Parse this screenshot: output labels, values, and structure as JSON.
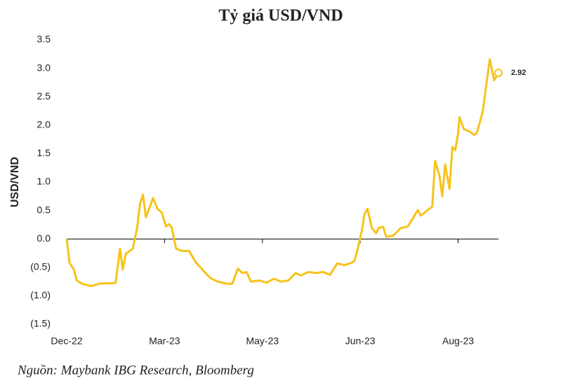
{
  "chart_data": {
    "type": "line",
    "title": "Tỷ giá USD/VND",
    "y_label": "USD/VND",
    "source": "Nguồn: Maybank IBG Research, Bloomberg",
    "xlim": [
      0,
      300
    ],
    "xticks": [
      {
        "value": 0,
        "label": "Dec-22"
      },
      {
        "value": 68,
        "label": "Mar-23"
      },
      {
        "value": 136,
        "label": "May-23"
      },
      {
        "value": 204,
        "label": "Jun-23"
      },
      {
        "value": 272,
        "label": "Aug-23"
      }
    ],
    "ylim": [
      -1.5,
      3.5
    ],
    "yticks": [
      3.5,
      {
        "value": 3,
        "label": "3.0"
      },
      2.5,
      {
        "value": 2,
        "label": "2.0"
      },
      1.5,
      {
        "value": 1,
        "label": "1.0"
      },
      0.5,
      {
        "value": 0,
        "label": "0.0"
      },
      {
        "value": -0.5,
        "label": "(0.5)"
      },
      {
        "value": -1,
        "label": "(1.0)"
      },
      {
        "value": -1.5,
        "label": "(1.5)"
      }
    ],
    "grid": false,
    "x": [
      0,
      2,
      5,
      7,
      11,
      17,
      22,
      27,
      32,
      34,
      37,
      39,
      41,
      46,
      49,
      51,
      53,
      55,
      57,
      60,
      63,
      66,
      69,
      71,
      73,
      76,
      80,
      85,
      90,
      98,
      100,
      105,
      112,
      115,
      119,
      122,
      125,
      128,
      134,
      139,
      144,
      149,
      154,
      159,
      163,
      168,
      173,
      178,
      183,
      188,
      193,
      198,
      200,
      202,
      205,
      207,
      209,
      212,
      215,
      217,
      220,
      222,
      227,
      232,
      237,
      241,
      244,
      246,
      251,
      254,
      256,
      259,
      261,
      263,
      266,
      268,
      270,
      272,
      273,
      276,
      280,
      283,
      285,
      289,
      291,
      294,
      297,
      300
    ],
    "series": [
      {
        "name": "USD/VND",
        "color": "#f7c21b",
        "values": [
          0,
          -0.42,
          -0.54,
          -0.73,
          -0.79,
          -0.83,
          -0.79,
          -0.78,
          -0.78,
          -0.77,
          -0.17,
          -0.54,
          -0.26,
          -0.17,
          0.2,
          0.63,
          0.78,
          0.38,
          0.51,
          0.72,
          0.53,
          0.47,
          0.22,
          0.26,
          0.2,
          -0.17,
          -0.21,
          -0.21,
          -0.42,
          -0.64,
          -0.69,
          -0.75,
          -0.79,
          -0.79,
          -0.52,
          -0.6,
          -0.58,
          -0.75,
          -0.73,
          -0.77,
          -0.7,
          -0.75,
          -0.73,
          -0.6,
          -0.64,
          -0.58,
          -0.6,
          -0.58,
          -0.63,
          -0.43,
          -0.46,
          -0.42,
          -0.38,
          -0.2,
          0.14,
          0.44,
          0.53,
          0.2,
          0.1,
          0.2,
          0.21,
          0.04,
          0.06,
          0.19,
          0.22,
          0.38,
          0.51,
          0.41,
          0.51,
          0.57,
          1.37,
          1.12,
          0.75,
          1.31,
          0.88,
          1.62,
          1.56,
          1.86,
          2.14,
          1.93,
          1.89,
          1.83,
          1.86,
          2.23,
          2.6,
          3.16,
          2.79,
          2.92
        ]
      }
    ]
  }
}
